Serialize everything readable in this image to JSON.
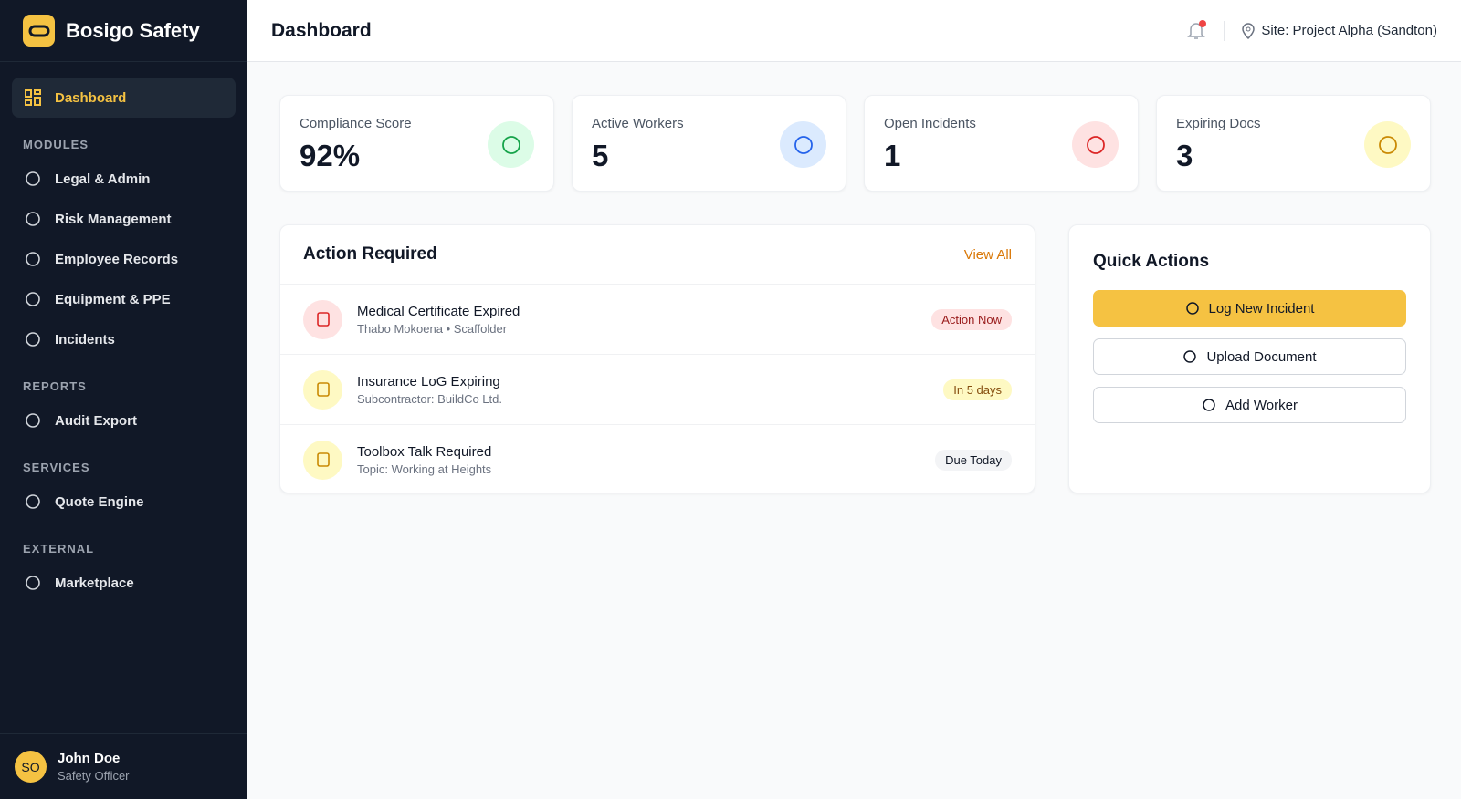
{
  "sidebar": {
    "brand": "Bosigo Safety",
    "active": "Dashboard",
    "sections": [
      {
        "title": "MODULES",
        "items": [
          "Legal & Admin",
          "Risk Management",
          "Employee Records",
          "Equipment & PPE",
          "Incidents"
        ]
      },
      {
        "title": "REPORTS",
        "items": [
          "Audit Export"
        ]
      },
      {
        "title": "SERVICES",
        "items": [
          "Quote Engine"
        ]
      },
      {
        "title": "EXTERNAL",
        "items": [
          "Marketplace"
        ]
      }
    ],
    "user": {
      "initials": "SO",
      "name": "John Doe",
      "role": "Safety Officer"
    }
  },
  "header": {
    "title": "Dashboard",
    "site": "Site: Project Alpha (Sandton)"
  },
  "stats": [
    {
      "label": "Compliance Score",
      "value": "92%"
    },
    {
      "label": "Active Workers",
      "value": "5"
    },
    {
      "label": "Open Incidents",
      "value": "1"
    },
    {
      "label": "Expiring Docs",
      "value": "3"
    }
  ],
  "action_required": {
    "title": "Action Required",
    "link": "View All",
    "items": [
      {
        "title": "Medical Certificate Expired",
        "subtitle": "Thabo Mokoena • Scaffolder",
        "badge": "Action Now"
      },
      {
        "title": "Insurance LoG Expiring",
        "subtitle": "Subcontractor: BuildCo Ltd.",
        "badge": "In 5 days"
      },
      {
        "title": "Toolbox Talk Required",
        "subtitle": "Topic: Working at Heights",
        "badge": "Due Today"
      }
    ]
  },
  "quick_actions": {
    "title": "Quick Actions",
    "buttons": [
      "Log New Incident",
      "Upload Document",
      "Add Worker"
    ]
  }
}
